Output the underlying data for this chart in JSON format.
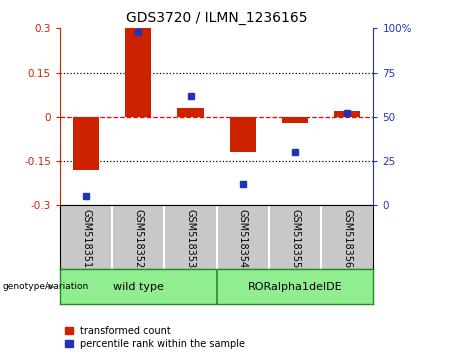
{
  "title": "GDS3720 / ILMN_1236165",
  "samples": [
    "GSM518351",
    "GSM518352",
    "GSM518353",
    "GSM518354",
    "GSM518355",
    "GSM518356"
  ],
  "red_bars": [
    -0.18,
    0.3,
    0.03,
    -0.12,
    -0.02,
    0.02
  ],
  "blue_dots_pct": [
    5,
    98,
    62,
    12,
    30,
    52
  ],
  "ylim_left": [
    -0.3,
    0.3
  ],
  "ylim_right": [
    0,
    100
  ],
  "yticks_left": [
    -0.3,
    -0.15,
    0,
    0.15,
    0.3
  ],
  "yticks_right": [
    0,
    25,
    50,
    75,
    100
  ],
  "ytick_labels_left": [
    "-0.3",
    "-0.15",
    "0",
    "0.15",
    "0.3"
  ],
  "ytick_labels_right": [
    "0",
    "25",
    "50",
    "75",
    "100%"
  ],
  "hlines": [
    -0.15,
    0,
    0.15
  ],
  "hline_styles": [
    "dotted",
    "dashed",
    "dotted"
  ],
  "hline_colors": [
    "black",
    "red",
    "black"
  ],
  "group1_label": "wild type",
  "group2_label": "RORalpha1delDE",
  "group1_indices": [
    0,
    1,
    2
  ],
  "group2_indices": [
    3,
    4,
    5
  ],
  "genotype_label": "genotype/variation",
  "red_color": "#CC2200",
  "blue_color": "#2233BB",
  "bar_width": 0.5,
  "legend_label_red": "transformed count",
  "legend_label_blue": "percentile rank within the sample",
  "tick_area_bg": "#c8c8c8",
  "group_bg": "#90EE90",
  "group_border": "#228B22"
}
